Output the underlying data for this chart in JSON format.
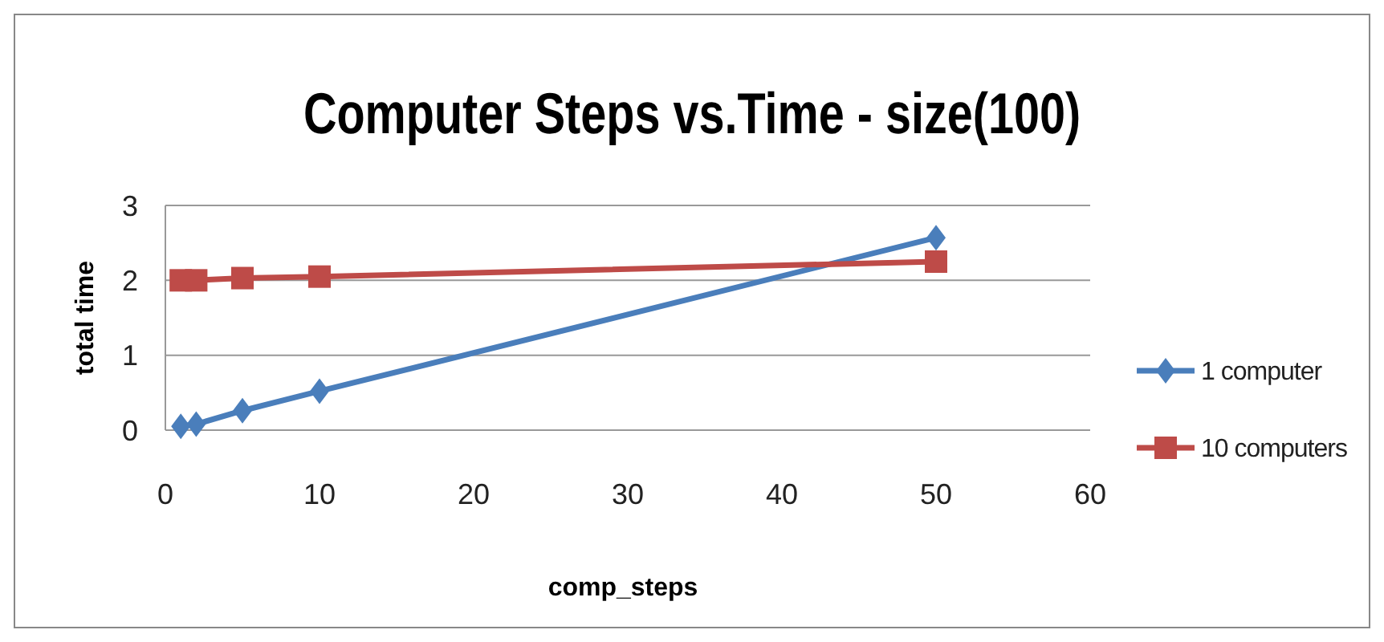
{
  "chart_data": {
    "type": "line",
    "title": "Computer Steps vs.Time - size(100)",
    "xlabel": "comp_steps",
    "ylabel": "total  time",
    "x": [
      1,
      2,
      5,
      10,
      50
    ],
    "series": [
      {
        "name": "1 computer",
        "color": "#4a7ebb",
        "values": [
          0.05,
          0.08,
          0.26,
          0.52,
          2.57
        ],
        "marker": "diamond"
      },
      {
        "name": "10 computers",
        "color": "#be4b48",
        "values": [
          2.0,
          2.0,
          2.03,
          2.05,
          2.25
        ],
        "marker": "square"
      }
    ],
    "xlim": [
      0,
      60
    ],
    "xticks": [
      0,
      10,
      20,
      30,
      40,
      50,
      60
    ],
    "ylim": [
      0,
      3
    ],
    "yticks": [
      0,
      1,
      2,
      3
    ],
    "grid": "y",
    "legend": "right",
    "line_style": "solid"
  }
}
